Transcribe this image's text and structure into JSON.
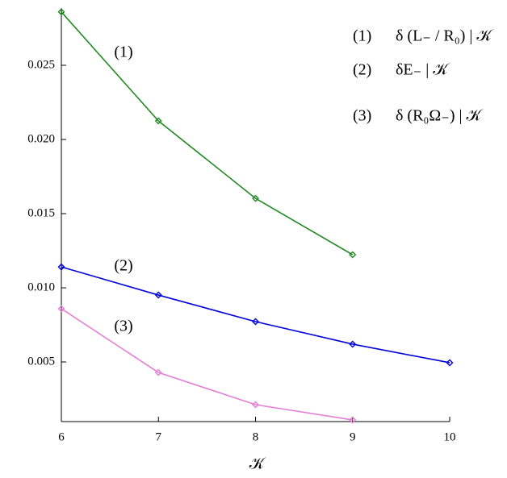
{
  "chart_data": {
    "type": "line",
    "x_label": "𝒦",
    "x": [
      6,
      7,
      8,
      9,
      10
    ],
    "xlim": [
      6,
      10
    ],
    "xticks": [
      6,
      7,
      8,
      9,
      10
    ],
    "ylim": [
      0.00098,
      0.02886
    ],
    "yticks": [
      0.005,
      {
        "value": 0.01,
        "label": "0.010"
      },
      0.015,
      {
        "value": 0.02,
        "label": "0.020"
      },
      0.025
    ],
    "series": [
      {
        "label": "(1)",
        "name": "δ (L₋ / R₀) | 𝒦",
        "color": "#238a23",
        "values": [
          0.0286,
          0.02125,
          0.01603,
          0.01223,
          null
        ]
      },
      {
        "label": "(2)",
        "name": "δE₋ | 𝒦",
        "color": "#0000dd",
        "values": [
          0.01141,
          0.00951,
          0.00772,
          0.0062,
          0.00495
        ]
      },
      {
        "label": "(3)",
        "name": "δ (R₀Ω₋) | 𝒦",
        "color": "#e57fd6",
        "values": [
          0.00859,
          0.00429,
          0.00212,
          0.00109,
          null
        ]
      }
    ]
  }
}
